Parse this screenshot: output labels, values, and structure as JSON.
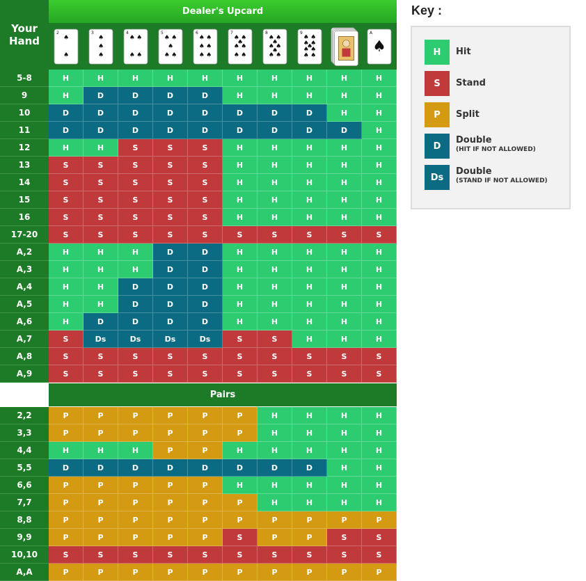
{
  "headers": {
    "dealer_upcard": "Dealer's Upcard",
    "your_hand_line1": "Your",
    "your_hand_line2": "Hand",
    "pairs": "Pairs"
  },
  "dealer_cards": [
    {
      "rank": "2",
      "pips": 2
    },
    {
      "rank": "3",
      "pips": 3
    },
    {
      "rank": "4",
      "pips": 4
    },
    {
      "rank": "5",
      "pips": 5
    },
    {
      "rank": "6",
      "pips": 6
    },
    {
      "rank": "7",
      "pips": 7
    },
    {
      "rank": "8",
      "pips": 8
    },
    {
      "rank": "9",
      "pips": 9
    },
    {
      "rank": "10",
      "pips": 0
    },
    {
      "rank": "A",
      "pips": 1
    }
  ],
  "hard_and_soft_rows": [
    {
      "label": "5-8",
      "actions": [
        "H",
        "H",
        "H",
        "H",
        "H",
        "H",
        "H",
        "H",
        "H",
        "H"
      ]
    },
    {
      "label": "9",
      "actions": [
        "H",
        "D",
        "D",
        "D",
        "D",
        "H",
        "H",
        "H",
        "H",
        "H"
      ]
    },
    {
      "label": "10",
      "actions": [
        "D",
        "D",
        "D",
        "D",
        "D",
        "D",
        "D",
        "D",
        "H",
        "H"
      ]
    },
    {
      "label": "11",
      "actions": [
        "D",
        "D",
        "D",
        "D",
        "D",
        "D",
        "D",
        "D",
        "D",
        "H"
      ]
    },
    {
      "label": "12",
      "actions": [
        "H",
        "H",
        "S",
        "S",
        "S",
        "H",
        "H",
        "H",
        "H",
        "H"
      ]
    },
    {
      "label": "13",
      "actions": [
        "S",
        "S",
        "S",
        "S",
        "S",
        "H",
        "H",
        "H",
        "H",
        "H"
      ]
    },
    {
      "label": "14",
      "actions": [
        "S",
        "S",
        "S",
        "S",
        "S",
        "H",
        "H",
        "H",
        "H",
        "H"
      ]
    },
    {
      "label": "15",
      "actions": [
        "S",
        "S",
        "S",
        "S",
        "S",
        "H",
        "H",
        "H",
        "H",
        "H"
      ]
    },
    {
      "label": "16",
      "actions": [
        "S",
        "S",
        "S",
        "S",
        "S",
        "H",
        "H",
        "H",
        "H",
        "H"
      ]
    },
    {
      "label": "17-20",
      "actions": [
        "S",
        "S",
        "S",
        "S",
        "S",
        "S",
        "S",
        "S",
        "S",
        "S"
      ]
    },
    {
      "label": "A,2",
      "actions": [
        "H",
        "H",
        "H",
        "D",
        "D",
        "H",
        "H",
        "H",
        "H",
        "H"
      ]
    },
    {
      "label": "A,3",
      "actions": [
        "H",
        "H",
        "H",
        "D",
        "D",
        "H",
        "H",
        "H",
        "H",
        "H"
      ]
    },
    {
      "label": "A,4",
      "actions": [
        "H",
        "H",
        "D",
        "D",
        "D",
        "H",
        "H",
        "H",
        "H",
        "H"
      ]
    },
    {
      "label": "A,5",
      "actions": [
        "H",
        "H",
        "D",
        "D",
        "D",
        "H",
        "H",
        "H",
        "H",
        "H"
      ]
    },
    {
      "label": "A,6",
      "actions": [
        "H",
        "D",
        "D",
        "D",
        "D",
        "H",
        "H",
        "H",
        "H",
        "H"
      ]
    },
    {
      "label": "A,7",
      "actions": [
        "S",
        "Ds",
        "Ds",
        "Ds",
        "Ds",
        "S",
        "S",
        "H",
        "H",
        "H"
      ]
    },
    {
      "label": "A,8",
      "actions": [
        "S",
        "S",
        "S",
        "S",
        "S",
        "S",
        "S",
        "S",
        "S",
        "S"
      ]
    },
    {
      "label": "A,9",
      "actions": [
        "S",
        "S",
        "S",
        "S",
        "S",
        "S",
        "S",
        "S",
        "S",
        "S"
      ]
    }
  ],
  "pair_rows": [
    {
      "label": "2,2",
      "actions": [
        "P",
        "P",
        "P",
        "P",
        "P",
        "P",
        "H",
        "H",
        "H",
        "H"
      ]
    },
    {
      "label": "3,3",
      "actions": [
        "P",
        "P",
        "P",
        "P",
        "P",
        "P",
        "H",
        "H",
        "H",
        "H"
      ]
    },
    {
      "label": "4,4",
      "actions": [
        "H",
        "H",
        "H",
        "P",
        "P",
        "H",
        "H",
        "H",
        "H",
        "H"
      ]
    },
    {
      "label": "5,5",
      "actions": [
        "D",
        "D",
        "D",
        "D",
        "D",
        "D",
        "D",
        "D",
        "H",
        "H"
      ]
    },
    {
      "label": "6,6",
      "actions": [
        "P",
        "P",
        "P",
        "P",
        "P",
        "H",
        "H",
        "H",
        "H",
        "H"
      ]
    },
    {
      "label": "7,7",
      "actions": [
        "P",
        "P",
        "P",
        "P",
        "P",
        "P",
        "H",
        "H",
        "H",
        "H"
      ]
    },
    {
      "label": "8,8",
      "actions": [
        "P",
        "P",
        "P",
        "P",
        "P",
        "P",
        "P",
        "P",
        "P",
        "P"
      ]
    },
    {
      "label": "9,9",
      "actions": [
        "P",
        "P",
        "P",
        "P",
        "P",
        "S",
        "P",
        "P",
        "S",
        "S"
      ]
    },
    {
      "label": "10,10",
      "actions": [
        "S",
        "S",
        "S",
        "S",
        "S",
        "S",
        "S",
        "S",
        "S",
        "S"
      ]
    },
    {
      "label": "A,A",
      "actions": [
        "P",
        "P",
        "P",
        "P",
        "P",
        "P",
        "P",
        "P",
        "P",
        "P"
      ]
    }
  ],
  "key": {
    "title": "Key :",
    "items": [
      {
        "code": "H",
        "label": "Hit",
        "sub": ""
      },
      {
        "code": "S",
        "label": "Stand",
        "sub": ""
      },
      {
        "code": "P",
        "label": "Split",
        "sub": ""
      },
      {
        "code": "D",
        "label": "Double",
        "sub": "(HIT IF NOT ALLOWED)"
      },
      {
        "code": "Ds",
        "label": "Double",
        "sub": "(STAND IF NOT ALLOWED)"
      }
    ]
  },
  "colors": {
    "H": "#2ecc71",
    "S": "#c0393b",
    "P": "#d39a12",
    "D": "#0a6b82",
    "Ds": "#0a6b82",
    "header_green": "#1d7a26"
  }
}
